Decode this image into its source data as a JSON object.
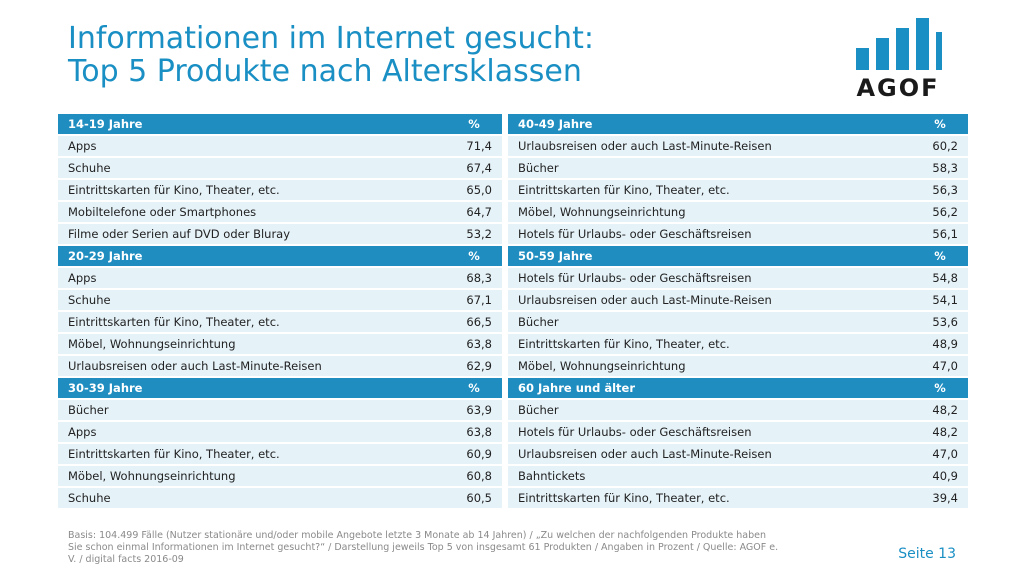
{
  "title": {
    "line1": "Informationen im Internet gesucht:",
    "line2": "Top 5 Produkte nach Altersklassen"
  },
  "logo": {
    "text": "AGOF",
    "color": "#1a8fc4",
    "icon": "bar-chart-logo"
  },
  "colors": {
    "header": "#1f8dc0",
    "row": "#e5f2f8",
    "accent": "#1a8fc4"
  },
  "table": {
    "rows": [
      {
        "type": "head",
        "left": [
          "14-19 Jahre",
          "%"
        ],
        "right": [
          "40-49 Jahre",
          "%"
        ]
      },
      {
        "type": "data",
        "left": [
          "Apps",
          "71,4"
        ],
        "right": [
          "Urlaubsreisen oder auch Last-Minute-Reisen",
          "60,2"
        ]
      },
      {
        "type": "data",
        "left": [
          "Schuhe",
          "67,4"
        ],
        "right": [
          "Bücher",
          "58,3"
        ]
      },
      {
        "type": "data",
        "left": [
          "Eintrittskarten für Kino, Theater, etc.",
          "65,0"
        ],
        "right": [
          "Eintrittskarten für Kino, Theater, etc.",
          "56,3"
        ]
      },
      {
        "type": "data",
        "left": [
          "Mobiltelefone oder Smartphones",
          "64,7"
        ],
        "right": [
          "Möbel, Wohnungseinrichtung",
          "56,2"
        ]
      },
      {
        "type": "data",
        "left": [
          "Filme oder Serien auf DVD oder Bluray",
          "53,2"
        ],
        "right": [
          "Hotels für Urlaubs- oder Geschäftsreisen",
          "56,1"
        ]
      },
      {
        "type": "head",
        "left": [
          "20-29 Jahre",
          "%"
        ],
        "right": [
          "50-59 Jahre",
          "%"
        ]
      },
      {
        "type": "data",
        "left": [
          "Apps",
          "68,3"
        ],
        "right": [
          "Hotels für Urlaubs- oder Geschäftsreisen",
          "54,8"
        ]
      },
      {
        "type": "data",
        "left": [
          "Schuhe",
          "67,1"
        ],
        "right": [
          "Urlaubsreisen oder auch Last-Minute-Reisen",
          "54,1"
        ]
      },
      {
        "type": "data",
        "left": [
          "Eintrittskarten für Kino, Theater, etc.",
          "66,5"
        ],
        "right": [
          "Bücher",
          "53,6"
        ]
      },
      {
        "type": "data",
        "left": [
          "Möbel, Wohnungseinrichtung",
          "63,8"
        ],
        "right": [
          "Eintrittskarten für Kino, Theater, etc.",
          "48,9"
        ]
      },
      {
        "type": "data",
        "left": [
          "Urlaubsreisen oder auch Last-Minute-Reisen",
          "62,9"
        ],
        "right": [
          "Möbel, Wohnungseinrichtung",
          "47,0"
        ]
      },
      {
        "type": "head",
        "left": [
          "30-39 Jahre",
          "%"
        ],
        "right": [
          "60 Jahre und älter",
          "%"
        ]
      },
      {
        "type": "data",
        "left": [
          "Bücher",
          "63,9"
        ],
        "right": [
          "Bücher",
          "48,2"
        ]
      },
      {
        "type": "data",
        "left": [
          "Apps",
          "63,8"
        ],
        "right": [
          "Hotels für Urlaubs- oder Geschäftsreisen",
          "48,2"
        ]
      },
      {
        "type": "data",
        "left": [
          "Eintrittskarten für Kino, Theater, etc.",
          "60,9"
        ],
        "right": [
          "Urlaubsreisen oder auch Last-Minute-Reisen",
          "47,0"
        ]
      },
      {
        "type": "data",
        "left": [
          "Möbel, Wohnungseinrichtung",
          "60,8"
        ],
        "right": [
          "Bahntickets",
          "40,9"
        ]
      },
      {
        "type": "data",
        "left": [
          "Schuhe",
          "60,5"
        ],
        "right": [
          "Eintrittskarten für Kino, Theater, etc.",
          "39,4"
        ]
      }
    ]
  },
  "footer": {
    "line1": "Basis: 104.499 Fälle (Nutzer stationäre und/oder mobile Angebote letzte 3 Monate ab 14 Jahren) / „Zu welchen der nachfolgenden Produkte haben",
    "line2": "Sie schon einmal Informationen im Internet gesucht?“ / Darstellung jeweils Top 5 von insgesamt 61 Produkten / Angaben in Prozent / Quelle: AGOF e.",
    "line3": "V. / digital facts 2016-09"
  },
  "page": "Seite 13"
}
